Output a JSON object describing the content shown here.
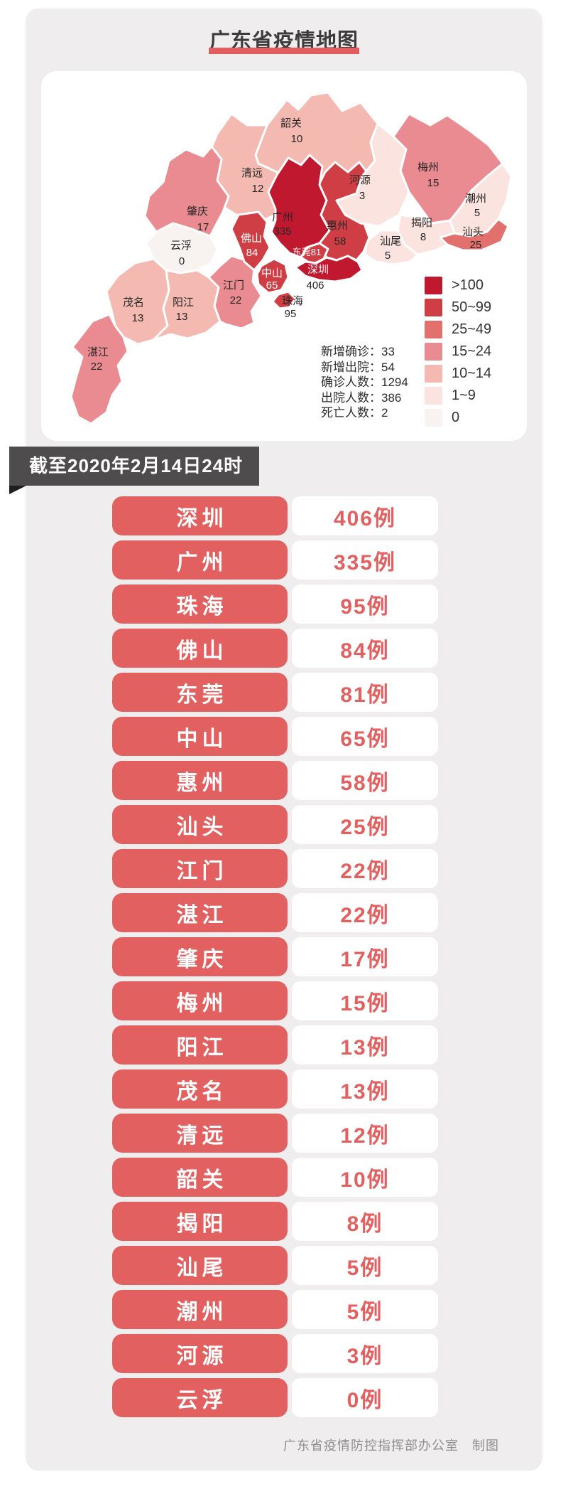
{
  "title": "广东省疫情地图",
  "date_ribbon": "截至2020年2月14日24时",
  "stats": [
    {
      "label": "新增确诊",
      "value": "33"
    },
    {
      "label": "新增出院",
      "value": "54"
    },
    {
      "label": "确诊人数",
      "value": "1294"
    },
    {
      "label": "出院人数",
      "value": "386"
    },
    {
      "label": "死亡人数",
      "value": "2"
    }
  ],
  "legend": {
    "items": [
      {
        "label": ">100",
        "color": "#c0182e"
      },
      {
        "label": "50~99",
        "color": "#cf3e45"
      },
      {
        "label": "25~49",
        "color": "#e2716e"
      },
      {
        "label": "15~24",
        "color": "#e98b90"
      },
      {
        "label": "10~14",
        "color": "#f4b9b1"
      },
      {
        "label": "1~9",
        "color": "#fbe3df"
      },
      {
        "label": "0",
        "color": "#f8f3f1"
      }
    ]
  },
  "chart_data": {
    "type": "choropleth",
    "title": "广东省疫情地图",
    "unit": "例",
    "legend_bins": [
      ">100",
      "50~99",
      "25~49",
      "15~24",
      "10~14",
      "1~9",
      "0"
    ],
    "regions": [
      {
        "name": "韶关",
        "cases": 10,
        "bucket": "10~14"
      },
      {
        "name": "清远",
        "cases": 12,
        "bucket": "10~14"
      },
      {
        "name": "梅州",
        "cases": 15,
        "bucket": "15~24"
      },
      {
        "name": "潮州",
        "cases": 5,
        "bucket": "1~9"
      },
      {
        "name": "揭阳",
        "cases": 8,
        "bucket": "1~9"
      },
      {
        "name": "汕头",
        "cases": 25,
        "bucket": "25~49"
      },
      {
        "name": "汕尾",
        "cases": 5,
        "bucket": "1~9"
      },
      {
        "name": "惠州",
        "cases": 58,
        "bucket": "50~99"
      },
      {
        "name": "河源",
        "cases": 3,
        "bucket": "1~9"
      },
      {
        "name": "肇庆",
        "cases": 17,
        "bucket": "15~24"
      },
      {
        "name": "云浮",
        "cases": 0,
        "bucket": "0"
      },
      {
        "name": "茂名",
        "cases": 13,
        "bucket": "10~14"
      },
      {
        "name": "阳江",
        "cases": 13,
        "bucket": "10~14"
      },
      {
        "name": "湛江",
        "cases": 22,
        "bucket": "15~24"
      },
      {
        "name": "江门",
        "cases": 22,
        "bucket": "15~24"
      },
      {
        "name": "广州",
        "cases": 335,
        "bucket": ">100"
      },
      {
        "name": "佛山",
        "cases": 84,
        "bucket": "50~99"
      },
      {
        "name": "东莞",
        "cases": 81,
        "bucket": "50~99"
      },
      {
        "name": "深圳",
        "cases": 406,
        "bucket": ">100"
      },
      {
        "name": "中山",
        "cases": 65,
        "bucket": "50~99"
      },
      {
        "name": "珠海",
        "cases": 95,
        "bucket": "50~99"
      }
    ]
  },
  "city_rows": [
    {
      "city": "深圳",
      "label": "406例"
    },
    {
      "city": "广州",
      "label": "335例"
    },
    {
      "city": "珠海",
      "label": "95例"
    },
    {
      "city": "佛山",
      "label": "84例"
    },
    {
      "city": "东莞",
      "label": "81例"
    },
    {
      "city": "中山",
      "label": "65例"
    },
    {
      "city": "惠州",
      "label": "58例"
    },
    {
      "city": "汕头",
      "label": "25例"
    },
    {
      "city": "江门",
      "label": "22例"
    },
    {
      "city": "湛江",
      "label": "22例"
    },
    {
      "city": "肇庆",
      "label": "17例"
    },
    {
      "city": "梅州",
      "label": "15例"
    },
    {
      "city": "阳江",
      "label": "13例"
    },
    {
      "city": "茂名",
      "label": "13例"
    },
    {
      "city": "清远",
      "label": "12例"
    },
    {
      "city": "韶关",
      "label": "10例"
    },
    {
      "city": "揭阳",
      "label": "8例"
    },
    {
      "city": "汕尾",
      "label": "5例"
    },
    {
      "city": "潮州",
      "label": "5例"
    },
    {
      "city": "河源",
      "label": "3例"
    },
    {
      "city": "云浮",
      "label": "0例"
    }
  ],
  "footer": "广东省疫情防控指挥部办公室　制图",
  "colors": {
    "pill_red": "#e2605f",
    "value_red": "#e2605f",
    "ribbon_bg": "#4e4c4c",
    "ribbon_fold": "#1f1f1f",
    "title_underline": "#e25d5d",
    "panel_bg": "#efeded",
    "title_text": "#3d3b3c",
    "footer_text": "#8e8e8e",
    "map_label_dark": "#262626"
  }
}
